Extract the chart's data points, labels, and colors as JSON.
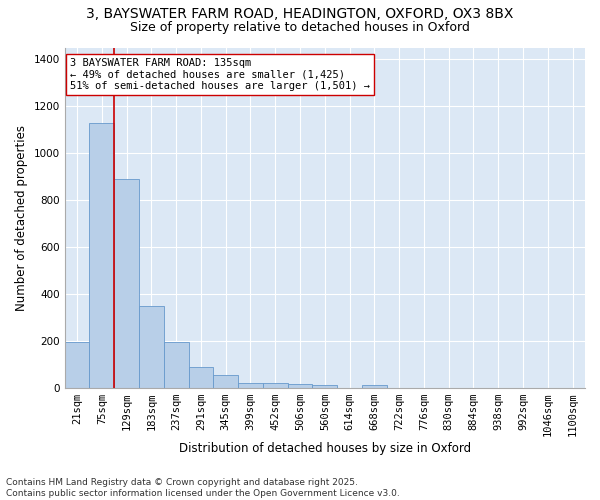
{
  "title_line1": "3, BAYSWATER FARM ROAD, HEADINGTON, OXFORD, OX3 8BX",
  "title_line2": "Size of property relative to detached houses in Oxford",
  "xlabel": "Distribution of detached houses by size in Oxford",
  "ylabel": "Number of detached properties",
  "bar_labels": [
    "21sqm",
    "75sqm",
    "129sqm",
    "183sqm",
    "237sqm",
    "291sqm",
    "345sqm",
    "399sqm",
    "452sqm",
    "506sqm",
    "560sqm",
    "614sqm",
    "668sqm",
    "722sqm",
    "776sqm",
    "830sqm",
    "884sqm",
    "938sqm",
    "992sqm",
    "1046sqm",
    "1100sqm"
  ],
  "bar_values": [
    195,
    1130,
    890,
    350,
    195,
    90,
    55,
    20,
    20,
    15,
    10,
    0,
    10,
    0,
    0,
    0,
    0,
    0,
    0,
    0,
    0
  ],
  "bar_color": "#b8cfe8",
  "bar_edge_color": "#6699cc",
  "bg_color": "#dce8f5",
  "grid_color": "#ffffff",
  "vline_color": "#cc0000",
  "annotation_text": "3 BAYSWATER FARM ROAD: 135sqm\n← 49% of detached houses are smaller (1,425)\n51% of semi-detached houses are larger (1,501) →",
  "annotation_box_facecolor": "#ffffff",
  "annotation_box_edgecolor": "#cc0000",
  "ylim": [
    0,
    1450
  ],
  "yticks": [
    0,
    200,
    400,
    600,
    800,
    1000,
    1200,
    1400
  ],
  "footnote": "Contains HM Land Registry data © Crown copyright and database right 2025.\nContains public sector information licensed under the Open Government Licence v3.0.",
  "title_fontsize": 10,
  "subtitle_fontsize": 9,
  "axis_label_fontsize": 8.5,
  "tick_fontsize": 7.5,
  "annotation_fontsize": 7.5,
  "footnote_fontsize": 6.5
}
